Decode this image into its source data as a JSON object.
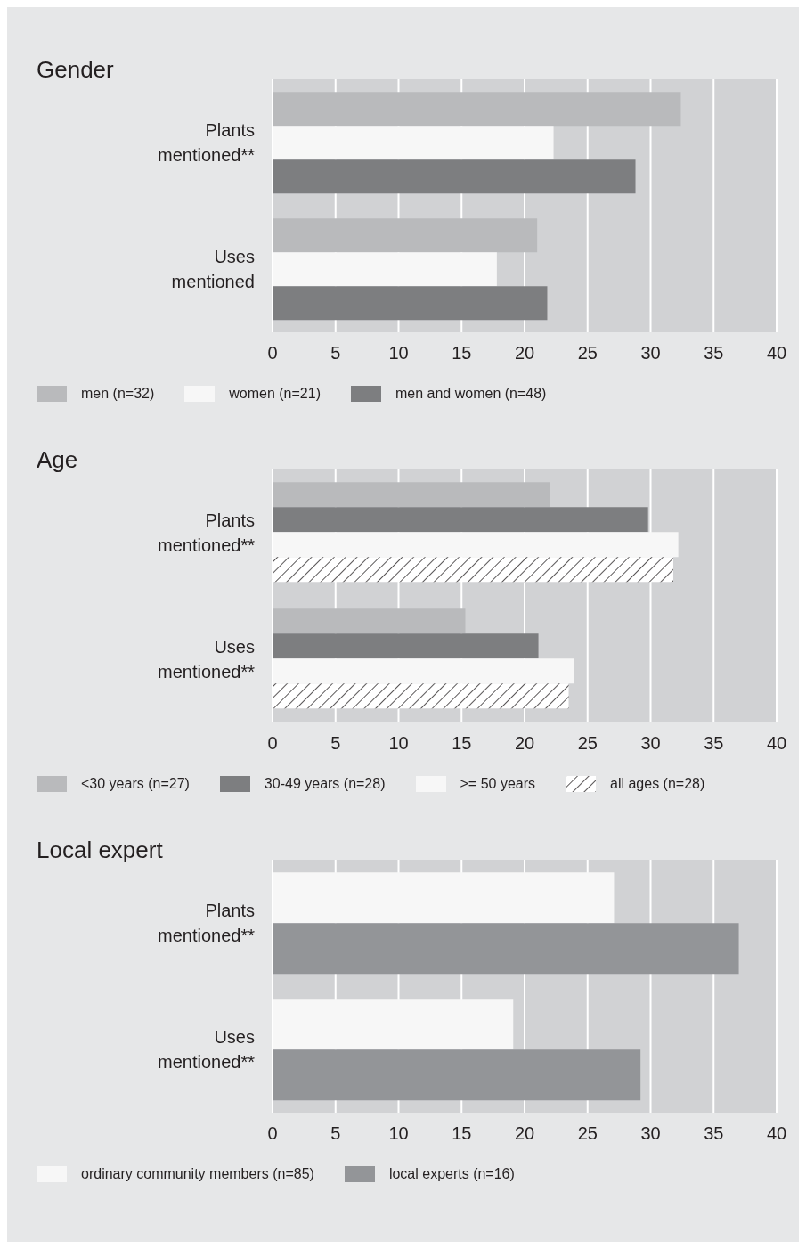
{
  "chart_data": [
    {
      "type": "bar",
      "orientation": "horizontal",
      "title": "Gender",
      "categories": [
        "Plants mentioned**",
        "Uses mentioned"
      ],
      "xlim": [
        0,
        40
      ],
      "xticks": [
        0,
        5,
        10,
        15,
        20,
        25,
        30,
        35,
        40
      ],
      "grid": "x",
      "legend": "bottom",
      "series": [
        {
          "name": "men (n=32)",
          "color": "#b9babc",
          "values": [
            32.4,
            21.0
          ]
        },
        {
          "name": "women (n=21)",
          "color": "#f7f7f7",
          "values": [
            22.3,
            17.8
          ]
        },
        {
          "name": "men and women (n=48)",
          "color": "#7d7e80",
          "values": [
            28.8,
            21.8
          ]
        }
      ]
    },
    {
      "type": "bar",
      "orientation": "horizontal",
      "title": "Age",
      "categories": [
        "Plants mentioned**",
        "Uses mentioned**"
      ],
      "xlim": [
        0,
        40
      ],
      "xticks": [
        0,
        5,
        10,
        15,
        20,
        25,
        30,
        35,
        40
      ],
      "grid": "x",
      "legend": "bottom",
      "series": [
        {
          "name": "<30 years (n=27)",
          "color": "#b9babc",
          "values": [
            22.0,
            15.3
          ]
        },
        {
          "name": "30-49 years (n=28)",
          "color": "#7d7e80",
          "values": [
            29.8,
            21.1
          ]
        },
        {
          "name": ">= 50 years",
          "color": "#f7f7f7",
          "values": [
            32.2,
            23.9
          ]
        },
        {
          "name": "all ages (n=28)",
          "color": "#ffffff",
          "values": [
            31.8,
            23.5
          ]
        }
      ]
    },
    {
      "type": "bar",
      "orientation": "horizontal",
      "title": "Local expert",
      "categories": [
        "Plants mentioned**",
        "Uses mentioned**"
      ],
      "xlim": [
        0,
        40
      ],
      "xticks": [
        0,
        5,
        10,
        15,
        20,
        25,
        30,
        35,
        40
      ],
      "grid": "x",
      "legend": "bottom",
      "series": [
        {
          "name": "ordinary community members (n=85)",
          "color": "#f7f7f7",
          "values": [
            27.1,
            19.1
          ]
        },
        {
          "name": "local experts (n=16)",
          "color": "#939598",
          "values": [
            37.0,
            29.2
          ]
        }
      ]
    }
  ]
}
